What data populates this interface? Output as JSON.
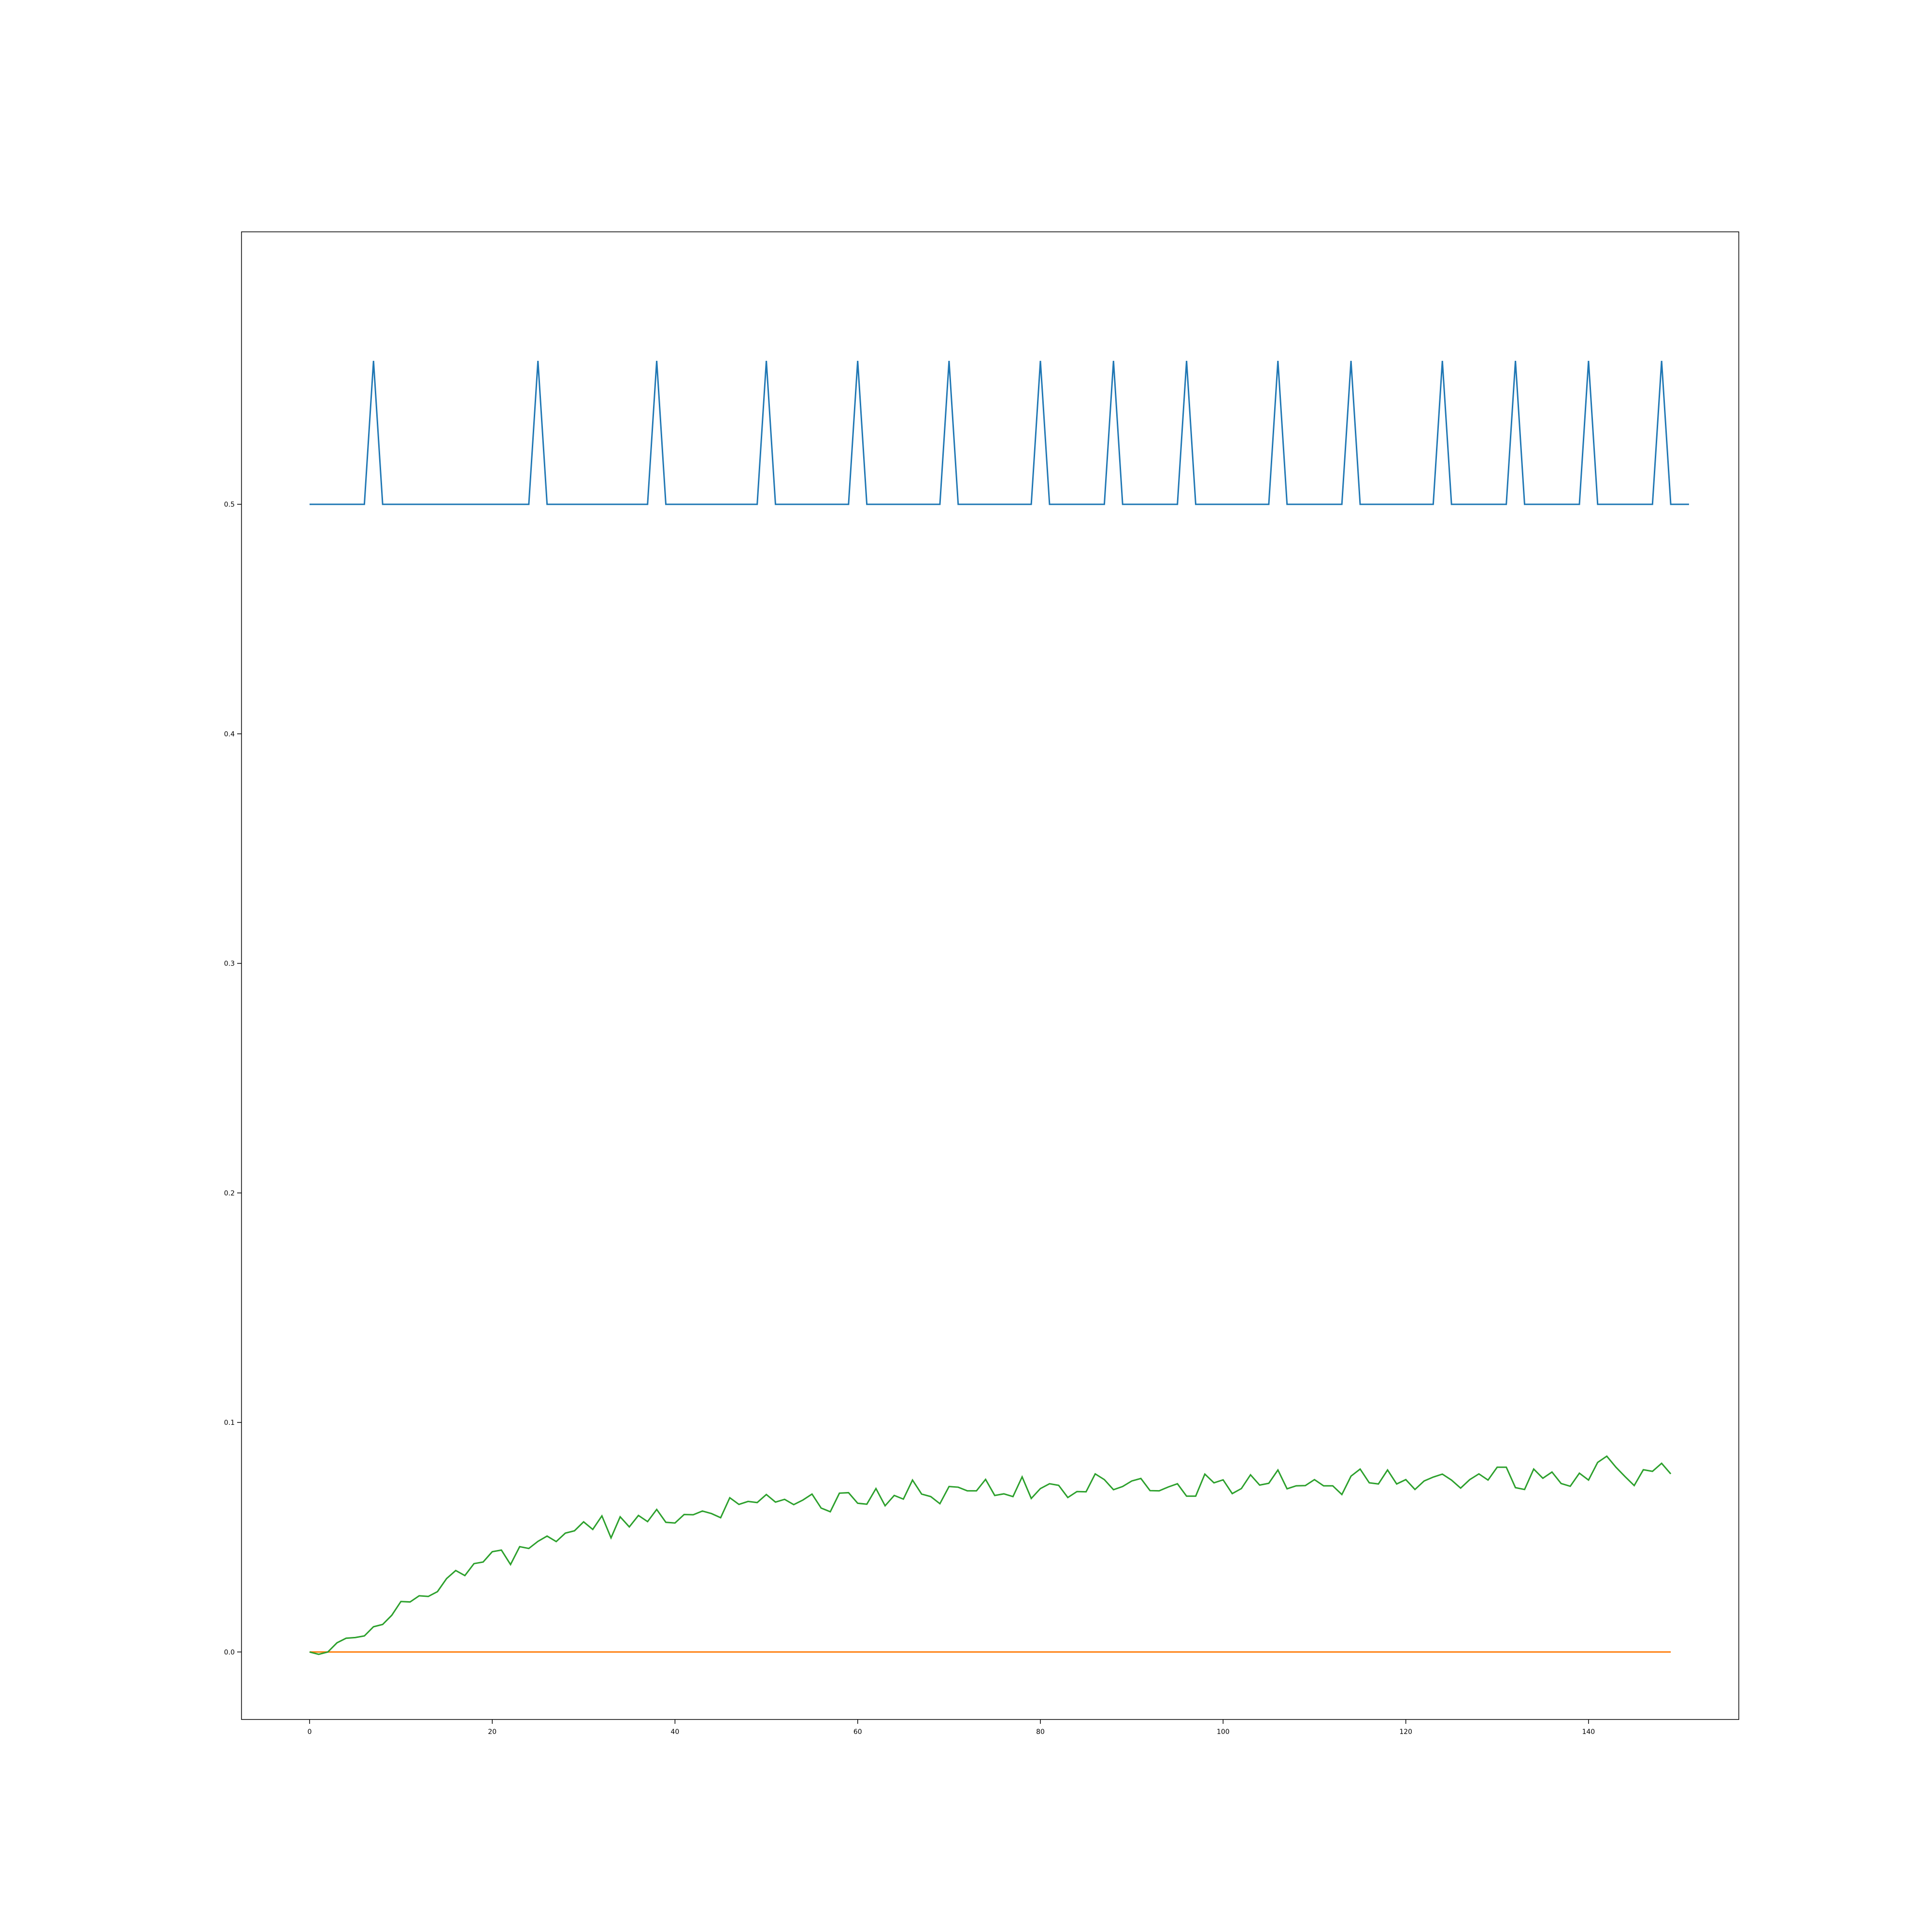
{
  "chart_data": {
    "type": "line",
    "title": "",
    "xlabel": "",
    "ylabel": "",
    "xlim": [
      -7.45,
      156.45
    ],
    "ylim": [
      -0.0294,
      0.6187
    ],
    "grid": false,
    "legend": "none",
    "xticks": [
      0,
      20,
      40,
      60,
      80,
      100,
      120,
      140
    ],
    "xtick_labels": [
      "0",
      "20",
      "40",
      "60",
      "80",
      "100",
      "120",
      "140"
    ],
    "yticks": [
      0.0,
      0.1,
      0.2,
      0.3,
      0.4,
      0.5
    ],
    "ytick_labels": [
      "0.0",
      "0.1",
      "0.2",
      "0.3",
      "0.4",
      "0.5"
    ],
    "colors": {
      "blue": "#1f77b4",
      "orange": "#ff7f0e",
      "green": "#2ca02c"
    },
    "series": [
      {
        "color": "#1f77b4",
        "x_start": 0,
        "x_step": 1,
        "values": [
          0.5,
          0.5,
          0.5,
          0.5,
          0.5,
          0.5,
          0.5,
          0.5625,
          0.5,
          0.5,
          0.5,
          0.5,
          0.5,
          0.5,
          0.5,
          0.5,
          0.5,
          0.5,
          0.5,
          0.5,
          0.5,
          0.5,
          0.5,
          0.5,
          0.5,
          0.5625,
          0.5,
          0.5,
          0.5,
          0.5,
          0.5,
          0.5,
          0.5,
          0.5,
          0.5,
          0.5,
          0.5,
          0.5,
          0.5625,
          0.5,
          0.5,
          0.5,
          0.5,
          0.5,
          0.5,
          0.5,
          0.5,
          0.5,
          0.5,
          0.5,
          0.5625,
          0.5,
          0.5,
          0.5,
          0.5,
          0.5,
          0.5,
          0.5,
          0.5,
          0.5,
          0.5625,
          0.5,
          0.5,
          0.5,
          0.5,
          0.5,
          0.5,
          0.5,
          0.5,
          0.5,
          0.5625,
          0.5,
          0.5,
          0.5,
          0.5,
          0.5,
          0.5,
          0.5,
          0.5,
          0.5,
          0.5625,
          0.5,
          0.5,
          0.5,
          0.5,
          0.5,
          0.5,
          0.5,
          0.5625,
          0.5,
          0.5,
          0.5,
          0.5,
          0.5,
          0.5,
          0.5,
          0.5625,
          0.5,
          0.5,
          0.5,
          0.5,
          0.5,
          0.5,
          0.5,
          0.5,
          0.5,
          0.5625,
          0.5,
          0.5,
          0.5,
          0.5,
          0.5,
          0.5,
          0.5,
          0.5625,
          0.5,
          0.5,
          0.5,
          0.5,
          0.5,
          0.5,
          0.5,
          0.5,
          0.5,
          0.5625,
          0.5,
          0.5,
          0.5,
          0.5,
          0.5,
          0.5,
          0.5,
          0.5625,
          0.5,
          0.5,
          0.5,
          0.5,
          0.5,
          0.5,
          0.5,
          0.5625,
          0.5,
          0.5,
          0.5,
          0.5,
          0.5,
          0.5,
          0.5,
          0.5625,
          0.5,
          0.5,
          0.5
        ]
      },
      {
        "color": "#ff7f0e",
        "x_start": 0,
        "x_step": 1,
        "values": [
          0,
          0,
          0,
          0,
          0,
          0,
          0,
          0,
          0,
          0,
          0,
          0,
          0,
          0,
          0,
          0,
          0,
          0,
          0,
          0,
          0,
          0,
          0,
          0,
          0,
          0,
          0,
          0,
          0,
          0,
          0,
          0,
          0,
          0,
          0,
          0,
          0,
          0,
          0,
          0,
          0,
          0,
          0,
          0,
          0,
          0,
          0,
          0,
          0,
          0,
          0,
          0,
          0,
          0,
          0,
          0,
          0,
          0,
          0,
          0,
          0,
          0,
          0,
          0,
          0,
          0,
          0,
          0,
          0,
          0,
          0,
          0,
          0,
          0,
          0,
          0,
          0,
          0,
          0,
          0,
          0,
          0,
          0,
          0,
          0,
          0,
          0,
          0,
          0,
          0,
          0,
          0,
          0,
          0,
          0,
          0,
          0,
          0,
          0,
          0,
          0,
          0,
          0,
          0,
          0,
          0,
          0,
          0,
          0,
          0,
          0,
          0,
          0,
          0,
          0,
          0,
          0,
          0,
          0,
          0,
          0,
          0,
          0,
          0,
          0,
          0,
          0,
          0,
          0,
          0,
          0,
          0,
          0,
          0,
          0,
          0,
          0,
          0,
          0,
          0,
          0,
          0,
          0,
          0,
          0,
          0,
          0,
          0,
          0,
          0
        ]
      },
      {
        "color": "#2ca02c",
        "x_start": 0,
        "x_step": 1,
        "values": [
          0.0,
          -0.001,
          0.0,
          0.004,
          0.006,
          0.0063,
          0.007,
          0.011,
          0.012,
          0.016,
          0.022,
          0.0218,
          0.0245,
          0.0242,
          0.0263,
          0.032,
          0.0355,
          0.0333,
          0.0385,
          0.0392,
          0.0437,
          0.0444,
          0.0381,
          0.0459,
          0.0451,
          0.0482,
          0.0505,
          0.0481,
          0.0518,
          0.0528,
          0.0567,
          0.0534,
          0.0593,
          0.0497,
          0.0589,
          0.0545,
          0.0595,
          0.0568,
          0.0621,
          0.0565,
          0.0562,
          0.0599,
          0.0598,
          0.0614,
          0.0603,
          0.0585,
          0.0672,
          0.0643,
          0.0656,
          0.0651,
          0.0686,
          0.0653,
          0.0665,
          0.0642,
          0.0662,
          0.0688,
          0.0627,
          0.0611,
          0.0692,
          0.0694,
          0.0648,
          0.0644,
          0.0712,
          0.0637,
          0.0682,
          0.0666,
          0.0749,
          0.0688,
          0.0677,
          0.0646,
          0.0721,
          0.0718,
          0.0702,
          0.0702,
          0.0752,
          0.0682,
          0.0689,
          0.0677,
          0.0763,
          0.0669,
          0.0712,
          0.0733,
          0.0726,
          0.0673,
          0.0699,
          0.0698,
          0.0776,
          0.0751,
          0.0707,
          0.0721,
          0.0745,
          0.0756,
          0.0703,
          0.0702,
          0.0719,
          0.0733,
          0.0679,
          0.0679,
          0.0775,
          0.0737,
          0.075,
          0.069,
          0.0712,
          0.0772,
          0.0727,
          0.0735,
          0.0793,
          0.0711,
          0.0724,
          0.0725,
          0.0751,
          0.0724,
          0.0724,
          0.0686,
          0.0766,
          0.0797,
          0.0737,
          0.0732,
          0.0793,
          0.0732,
          0.0751,
          0.0708,
          0.0745,
          0.0762,
          0.0775,
          0.0749,
          0.0714,
          0.0751,
          0.0776,
          0.0749,
          0.0805,
          0.0805,
          0.0716,
          0.0708,
          0.0797,
          0.0757,
          0.0784,
          0.0734,
          0.0722,
          0.0779,
          0.0749,
          0.0826,
          0.0853,
          0.0805,
          0.0764,
          0.0725,
          0.0794,
          0.0787,
          0.0822,
          0.0776
        ]
      }
    ]
  }
}
